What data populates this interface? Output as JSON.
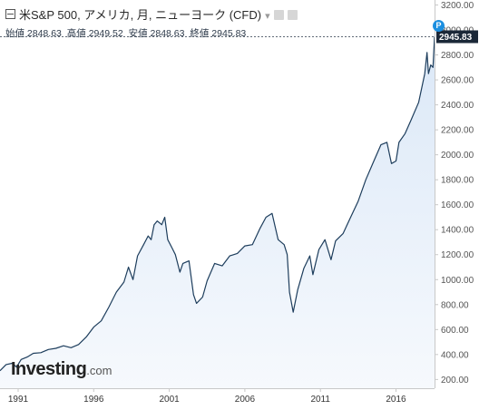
{
  "header": {
    "title": "米S&P 500, アメリカ, 月, ニューヨーク (CFD)",
    "caret": "▾"
  },
  "ohlc": {
    "open": "始値 2848.63",
    "high": "高値 2949.52",
    "low": "安値 2848.63",
    "close": "終値 2945.83"
  },
  "badge": {
    "label": "P"
  },
  "logo": {
    "brand": "Investing",
    "suffix": ".com"
  },
  "colors": {
    "line": "#1d3d5c",
    "area_top": "#dbe8f7",
    "area_bottom": "#f6f9fd",
    "price_tag": "#1b2838",
    "badge": "#1c8fe0"
  },
  "chart_data": {
    "type": "area",
    "ylim": [
      130,
      3240
    ],
    "xlim": [
      1989.8,
      2018.55
    ],
    "yticks": [
      "200.00",
      "400.00",
      "600.00",
      "800.00",
      "1000.00",
      "1200.00",
      "1400.00",
      "1600.00",
      "1800.00",
      "2000.00",
      "2200.00",
      "2400.00",
      "2600.00",
      "2800.00",
      "3000.00",
      "3200.00"
    ],
    "xticks": [
      "1991",
      "1996",
      "2001",
      "2006",
      "2011",
      "2016"
    ],
    "last_value": "2945.83",
    "grid": false,
    "series": [
      {
        "x": [
          1989.8,
          1990.2,
          1990.6,
          1990.9,
          1991.2,
          1991.6,
          1992.0,
          1992.5,
          1993.0,
          1993.5,
          1994.0,
          1994.5,
          1995.0,
          1995.5,
          1996.0,
          1996.5,
          1997.0,
          1997.5,
          1998.0,
          1998.3,
          1998.6,
          1998.9,
          1999.3,
          1999.6,
          1999.8,
          2000.0,
          2000.2,
          2000.5,
          2000.7,
          2000.9,
          2001.2,
          2001.4,
          2001.7,
          2001.9,
          2002.3,
          2002.6,
          2002.8,
          2003.2,
          2003.5,
          2004.0,
          2004.5,
          2005.0,
          2005.5,
          2006.0,
          2006.5,
          2007.0,
          2007.4,
          2007.8,
          2008.2,
          2008.6,
          2008.8,
          2008.95,
          2009.2,
          2009.5,
          2009.9,
          2010.3,
          2010.5,
          2010.9,
          2011.3,
          2011.7,
          2012.0,
          2012.5,
          2013.0,
          2013.5,
          2014.0,
          2014.5,
          2015.0,
          2015.4,
          2015.7,
          2016.0,
          2016.2,
          2016.6,
          2017.0,
          2017.5,
          2017.9,
          2018.05,
          2018.15,
          2018.3,
          2018.45,
          2018.55
        ],
        "y": [
          270,
          320,
          330,
          300,
          360,
          380,
          410,
          415,
          440,
          450,
          470,
          455,
          480,
          540,
          620,
          670,
          780,
          900,
          980,
          1100,
          1000,
          1190,
          1280,
          1350,
          1320,
          1440,
          1470,
          1440,
          1500,
          1320,
          1250,
          1200,
          1060,
          1130,
          1150,
          880,
          810,
          860,
          990,
          1130,
          1110,
          1190,
          1210,
          1270,
          1280,
          1410,
          1500,
          1530,
          1320,
          1280,
          1200,
          900,
          740,
          920,
          1090,
          1190,
          1040,
          1240,
          1320,
          1160,
          1310,
          1370,
          1500,
          1630,
          1800,
          1940,
          2080,
          2100,
          1930,
          1950,
          2100,
          2170,
          2280,
          2420,
          2650,
          2820,
          2650,
          2720,
          2700,
          2945.83
        ]
      }
    ]
  }
}
